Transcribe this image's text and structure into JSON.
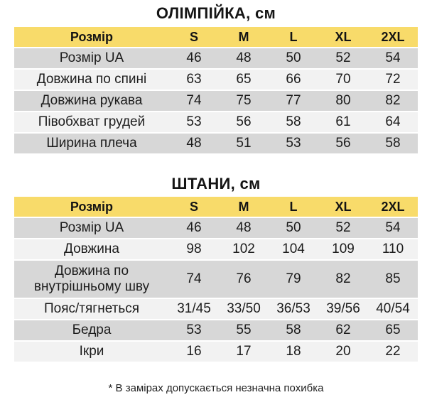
{
  "jacket": {
    "title": "ОЛІМПІЙКА, см",
    "header": [
      "Розмір",
      "S",
      "M",
      "L",
      "XL",
      "2XL"
    ],
    "rows": [
      [
        "Розмір UA",
        "46",
        "48",
        "50",
        "52",
        "54"
      ],
      [
        "Довжина по спині",
        "63",
        "65",
        "66",
        "70",
        "72"
      ],
      [
        "Довжина рукава",
        "74",
        "75",
        "77",
        "80",
        "82"
      ],
      [
        "Півобхват грудей",
        "53",
        "56",
        "58",
        "61",
        "64"
      ],
      [
        "Ширина плеча",
        "48",
        "51",
        "53",
        "56",
        "58"
      ]
    ]
  },
  "pants": {
    "title": "ШТАНИ, см",
    "header": [
      "Розмір",
      "S",
      "M",
      "L",
      "XL",
      "2XL"
    ],
    "rows": [
      [
        "Розмір UA",
        "46",
        "48",
        "50",
        "52",
        "54"
      ],
      [
        "Довжина",
        "98",
        "102",
        "104",
        "109",
        "110"
      ],
      [
        "Довжина по\nвнутрішньому шву",
        "74",
        "76",
        "79",
        "82",
        "85"
      ],
      [
        "Пояс/тягнеться",
        "31/45",
        "33/50",
        "36/53",
        "39/56",
        "40/54"
      ],
      [
        "Бедра",
        "53",
        "55",
        "58",
        "62",
        "65"
      ],
      [
        "Ікри",
        "16",
        "17",
        "18",
        "20",
        "22"
      ]
    ]
  },
  "note": "* В замірах допускається незначна похибка",
  "colors": {
    "header": "#f8db6a",
    "row_dark": "#d7d7d7",
    "row_light": "#f2f2f2"
  }
}
